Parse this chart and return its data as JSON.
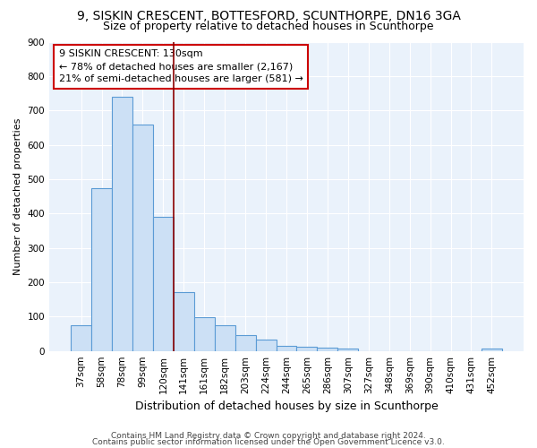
{
  "title1": "9, SISKIN CRESCENT, BOTTESFORD, SCUNTHORPE, DN16 3GA",
  "title2": "Size of property relative to detached houses in Scunthorpe",
  "xlabel": "Distribution of detached houses by size in Scunthorpe",
  "ylabel": "Number of detached properties",
  "categories": [
    "37sqm",
    "58sqm",
    "78sqm",
    "99sqm",
    "120sqm",
    "141sqm",
    "161sqm",
    "182sqm",
    "203sqm",
    "224sqm",
    "244sqm",
    "265sqm",
    "286sqm",
    "307sqm",
    "327sqm",
    "348sqm",
    "369sqm",
    "390sqm",
    "410sqm",
    "431sqm",
    "452sqm"
  ],
  "values": [
    75,
    475,
    740,
    660,
    390,
    172,
    97,
    75,
    46,
    32,
    14,
    12,
    9,
    6,
    0,
    0,
    0,
    0,
    0,
    0,
    8
  ],
  "bar_color": "#cce0f5",
  "bar_edge_color": "#5b9bd5",
  "red_line_x": 4.5,
  "annotation_line1": "9 SISKIN CRESCENT: 130sqm",
  "annotation_line2": "← 78% of detached houses are smaller (2,167)",
  "annotation_line3": "21% of semi-detached houses are larger (581) →",
  "annotation_box_color": "white",
  "annotation_box_edge": "#cc0000",
  "red_line_color": "#8b0000",
  "footer1": "Contains HM Land Registry data © Crown copyright and database right 2024.",
  "footer2": "Contains public sector information licensed under the Open Government Licence v3.0.",
  "background_color": "#eaf2fb",
  "ylim": [
    0,
    900
  ],
  "yticks": [
    0,
    100,
    200,
    300,
    400,
    500,
    600,
    700,
    800,
    900
  ],
  "title1_fontsize": 10,
  "title2_fontsize": 9,
  "xlabel_fontsize": 9,
  "ylabel_fontsize": 8,
  "tick_fontsize": 7.5,
  "annotation_fontsize": 8,
  "footer_fontsize": 6.5
}
